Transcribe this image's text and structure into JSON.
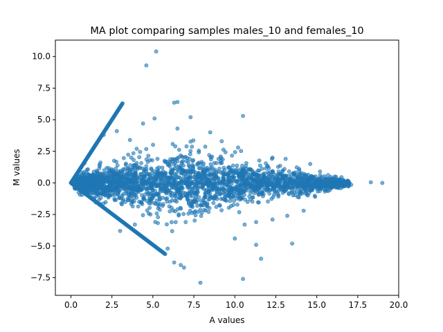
{
  "chart_data": {
    "type": "scatter",
    "title": "MA plot comparing samples males_10 and females_10",
    "xlabel": "A values",
    "ylabel": "M values",
    "xlim": [
      -0.95,
      20.0
    ],
    "ylim": [
      -8.9,
      11.3
    ],
    "x_ticks": [
      0.0,
      2.5,
      5.0,
      7.5,
      10.0,
      12.5,
      15.0,
      17.5,
      20.0
    ],
    "x_tick_labels": [
      "0.0",
      "2.5",
      "5.0",
      "7.5",
      "10.0",
      "12.5",
      "15.0",
      "17.5",
      "20.0"
    ],
    "y_ticks": [
      -7.5,
      -5.0,
      -2.5,
      0.0,
      2.5,
      5.0,
      7.5,
      10.0
    ],
    "y_tick_labels": [
      "−7.5",
      "−5.0",
      "−2.5",
      "0.0",
      "2.5",
      "5.0",
      "7.5",
      "10.0"
    ],
    "grid": false,
    "marker_color": "#1f77b4",
    "marker_alpha": 0.6,
    "series": [
      {
        "values": [
          [
            5.2,
            10.4
          ],
          [
            4.6,
            9.3
          ],
          [
            10.5,
            5.3
          ],
          [
            6.5,
            6.4
          ],
          [
            6.3,
            6.35
          ],
          [
            7.3,
            5.2
          ],
          [
            5.1,
            5.1
          ],
          [
            4.4,
            4.7
          ],
          [
            6.5,
            4.3
          ],
          [
            8.5,
            4.0
          ],
          [
            9.2,
            3.3
          ],
          [
            10.2,
            2.8
          ],
          [
            12.3,
            2.0
          ],
          [
            13.1,
            1.9
          ],
          [
            14.6,
            1.5
          ],
          [
            15.2,
            0.9
          ],
          [
            16.1,
            0.5
          ],
          [
            18.3,
            0.05
          ],
          [
            19.0,
            0.0
          ],
          [
            17.1,
            -0.15
          ],
          [
            16.6,
            -0.3
          ],
          [
            15.6,
            -0.6
          ],
          [
            14.9,
            -1.1
          ],
          [
            14.2,
            -2.2
          ],
          [
            13.2,
            -2.6
          ],
          [
            12.3,
            -2.9
          ],
          [
            11.3,
            -3.1
          ],
          [
            10.6,
            -3.3
          ],
          [
            10.0,
            -4.4
          ],
          [
            11.3,
            -4.9
          ],
          [
            11.6,
            -6.0
          ],
          [
            13.5,
            -4.8
          ],
          [
            10.5,
            -7.6
          ],
          [
            7.9,
            -7.9
          ],
          [
            6.9,
            -6.7
          ],
          [
            6.7,
            -6.5
          ],
          [
            6.3,
            -6.3
          ],
          [
            5.9,
            -5.2
          ],
          [
            7.0,
            -3.1
          ],
          [
            8.4,
            -2.3
          ],
          [
            9.1,
            -1.8
          ],
          [
            3.0,
            -3.8
          ],
          [
            3.9,
            -3.3
          ],
          [
            2.0,
            3.8
          ],
          [
            2.8,
            4.1
          ],
          [
            3.6,
            3.4
          ],
          [
            12.0,
            0.3
          ],
          [
            11.0,
            -0.4
          ],
          [
            13.8,
            -0.7
          ],
          [
            12.9,
            0.6
          ],
          [
            14.0,
            0.4
          ],
          [
            9.7,
            1.2
          ],
          [
            8.8,
            -1.0
          ],
          [
            7.8,
            1.6
          ]
        ]
      }
    ]
  }
}
